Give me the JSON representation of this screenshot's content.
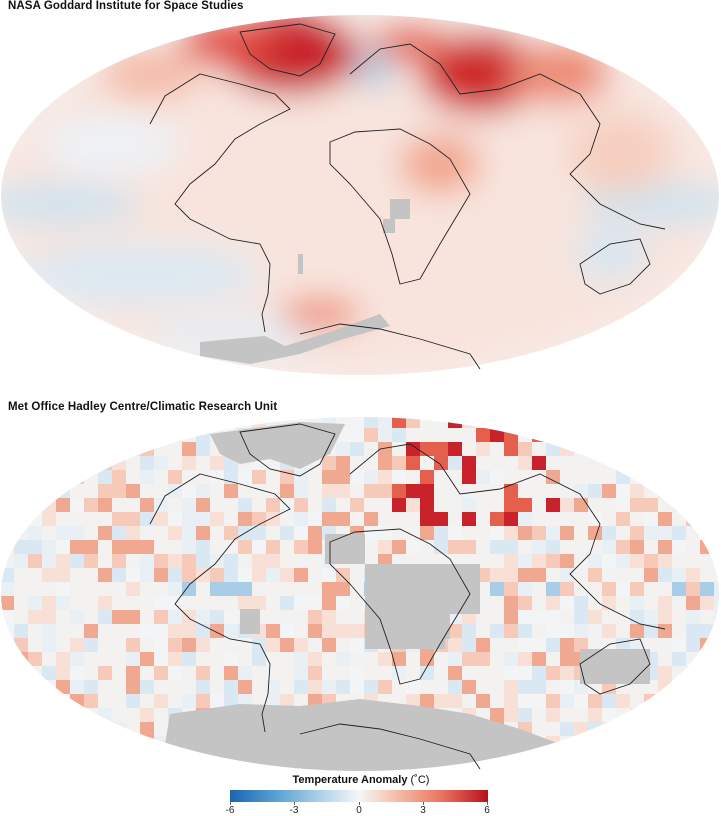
{
  "panels": [
    {
      "title": "NASA Goddard Institute for Space Studies"
    },
    {
      "title": "Met Office Hadley Centre/Climatic Research Unit"
    }
  ],
  "legend": {
    "title": "Temperature Anomaly",
    "unit": "(˚C)",
    "ticks": [
      "-6",
      "-3",
      "0",
      "3",
      "6"
    ],
    "range": [
      -6,
      6
    ]
  },
  "colors": {
    "cold": "#1a66b0",
    "neutral": "#f5f6f8",
    "warm": "#b7111e",
    "missing": "#c4c4c4",
    "coast": "#222222"
  }
}
